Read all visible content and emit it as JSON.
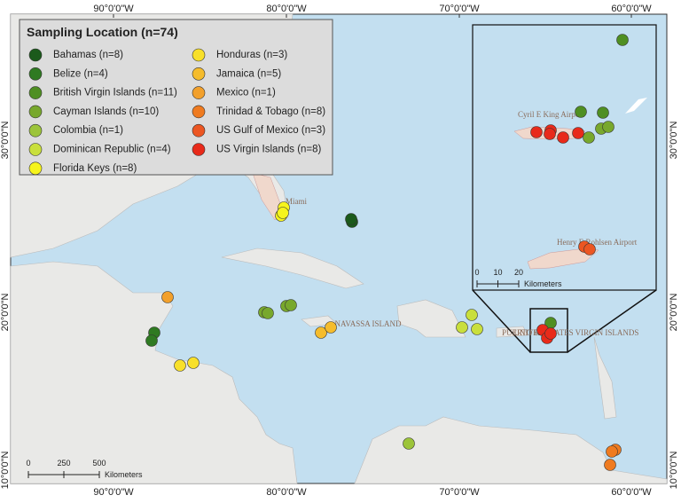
{
  "legend": {
    "title": "Sampling Location (n=74)",
    "items": [
      {
        "label": "Bahamas (n=8)",
        "color": "#1b5a1b"
      },
      {
        "label": "Belize (n=4)",
        "color": "#2f7a22"
      },
      {
        "label": "British Virgin Islands (n=11)",
        "color": "#4f8f22"
      },
      {
        "label": "Cayman Islands (n=10)",
        "color": "#78a82c"
      },
      {
        "label": "Colombia (n=1)",
        "color": "#9cc43a"
      },
      {
        "label": "Dominican Republic (n=4)",
        "color": "#c9df3c"
      },
      {
        "label": "Florida Keys (n=8)",
        "color": "#f6f41c"
      },
      {
        "label": "Honduras (n=3)",
        "color": "#f8e02a"
      },
      {
        "label": "Jamaica (n=5)",
        "color": "#f5bc2c"
      },
      {
        "label": "Mexico (n=1)",
        "color": "#f2a02c"
      },
      {
        "label": "Trinidad & Tobago (n=8)",
        "color": "#ef7b20"
      },
      {
        "label": "US Gulf of Mexico (n=3)",
        "color": "#ec5622"
      },
      {
        "label": "US Virgin Islands (n=8)",
        "color": "#e82a1a"
      }
    ]
  },
  "axes": {
    "longitude": [
      "90°0'0\"W",
      "80°0'0\"W",
      "70°0'0\"W",
      "60°0'0\"W"
    ],
    "latitude": [
      "30°0'0\"N",
      "20°0'0\"N",
      "10°0'0\"N"
    ]
  },
  "scale_bar": {
    "labels": [
      "0",
      "250",
      "500"
    ],
    "unit": "Kilometers"
  },
  "inset_scale_bar": {
    "labels": [
      "0",
      "10",
      "20"
    ],
    "unit": "Kilometers"
  },
  "place_labels": [
    "Miami",
    "NAVASSA ISLAND",
    "PUERTO RICO",
    "UNITED STATES VIRGIN ISLANDS",
    "Cyril E King Airport",
    "Henry E Rohlsen Airport"
  ]
}
